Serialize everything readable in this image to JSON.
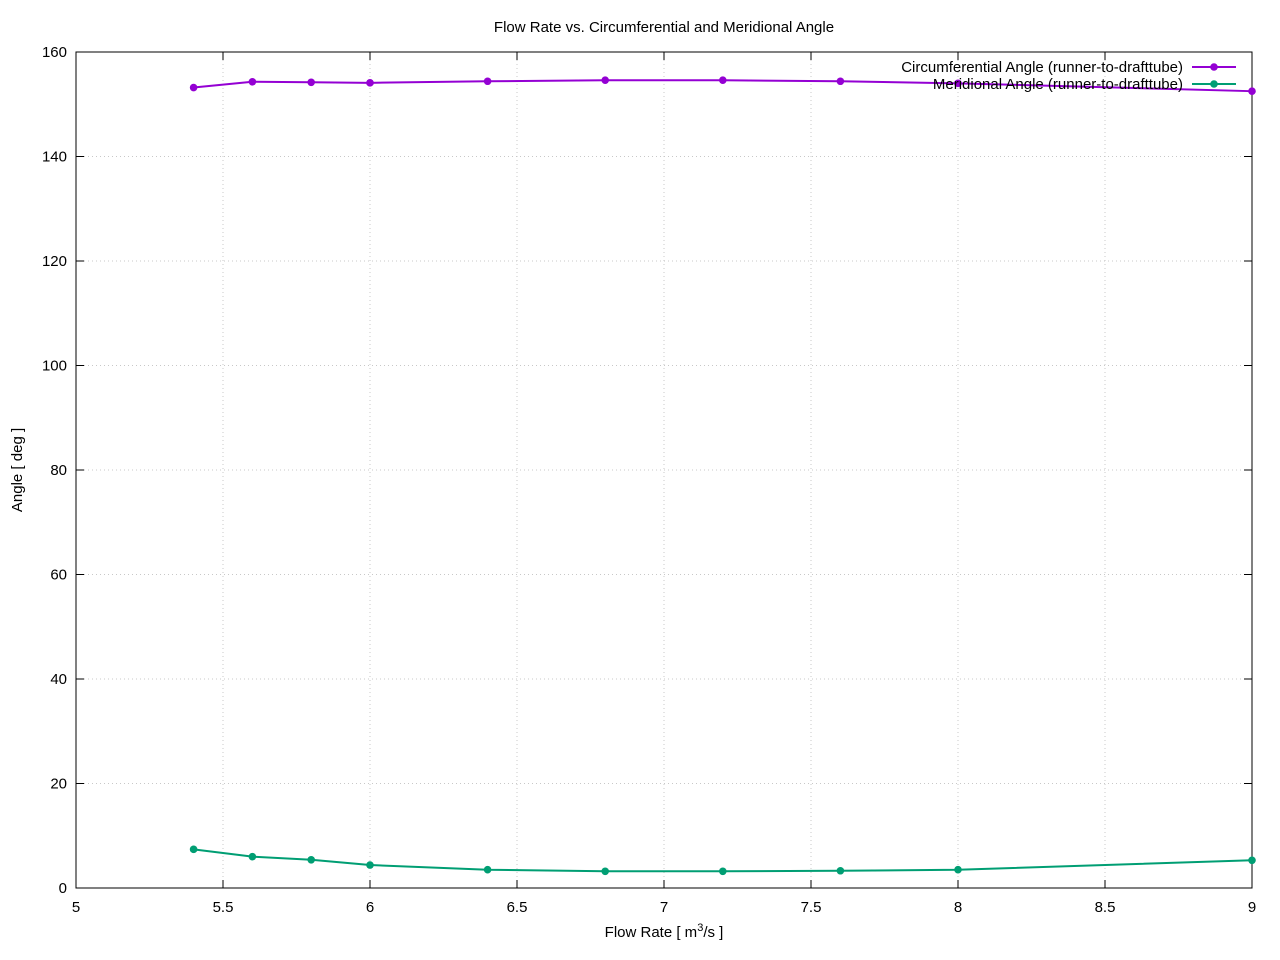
{
  "chart_data": {
    "type": "line",
    "title": "Flow Rate vs. Circumferential and Meridional Angle",
    "xlabel": "Flow Rate [ m",
    "xlabel_sup": "3",
    "xlabel_tail": "/s ]",
    "ylabel": "Angle [ deg ]",
    "xlim": [
      5,
      9
    ],
    "ylim": [
      0,
      160
    ],
    "x_ticks": [
      5,
      5.5,
      6,
      6.5,
      7,
      7.5,
      8,
      8.5,
      9
    ],
    "x_tick_labels": [
      "5",
      "5.5",
      "6",
      "6.5",
      "7",
      "7.5",
      "8",
      "8.5",
      "9"
    ],
    "y_ticks": [
      0,
      20,
      40,
      60,
      80,
      100,
      120,
      140,
      160
    ],
    "y_tick_labels": [
      "0",
      "20",
      "40",
      "60",
      "80",
      "100",
      "120",
      "140",
      "160"
    ],
    "grid": true,
    "legend_position": "top-right",
    "series": [
      {
        "name": "Circumferential Angle (runner-to-drafttube)",
        "color": "#9400d3",
        "x": [
          5.4,
          5.6,
          5.8,
          6.0,
          6.4,
          6.8,
          7.2,
          7.6,
          8.0,
          9.0
        ],
        "y": [
          153.2,
          154.3,
          154.2,
          154.1,
          154.4,
          154.6,
          154.6,
          154.4,
          154.0,
          152.5
        ]
      },
      {
        "name": "Meridional Angle (runner-to-drafttube)",
        "color": "#009e73",
        "x": [
          5.4,
          5.6,
          5.8,
          6.0,
          6.4,
          6.8,
          7.2,
          7.6,
          8.0,
          9.0
        ],
        "y": [
          7.4,
          6.0,
          5.4,
          4.4,
          3.5,
          3.2,
          3.2,
          3.3,
          3.5,
          5.3
        ]
      }
    ]
  }
}
